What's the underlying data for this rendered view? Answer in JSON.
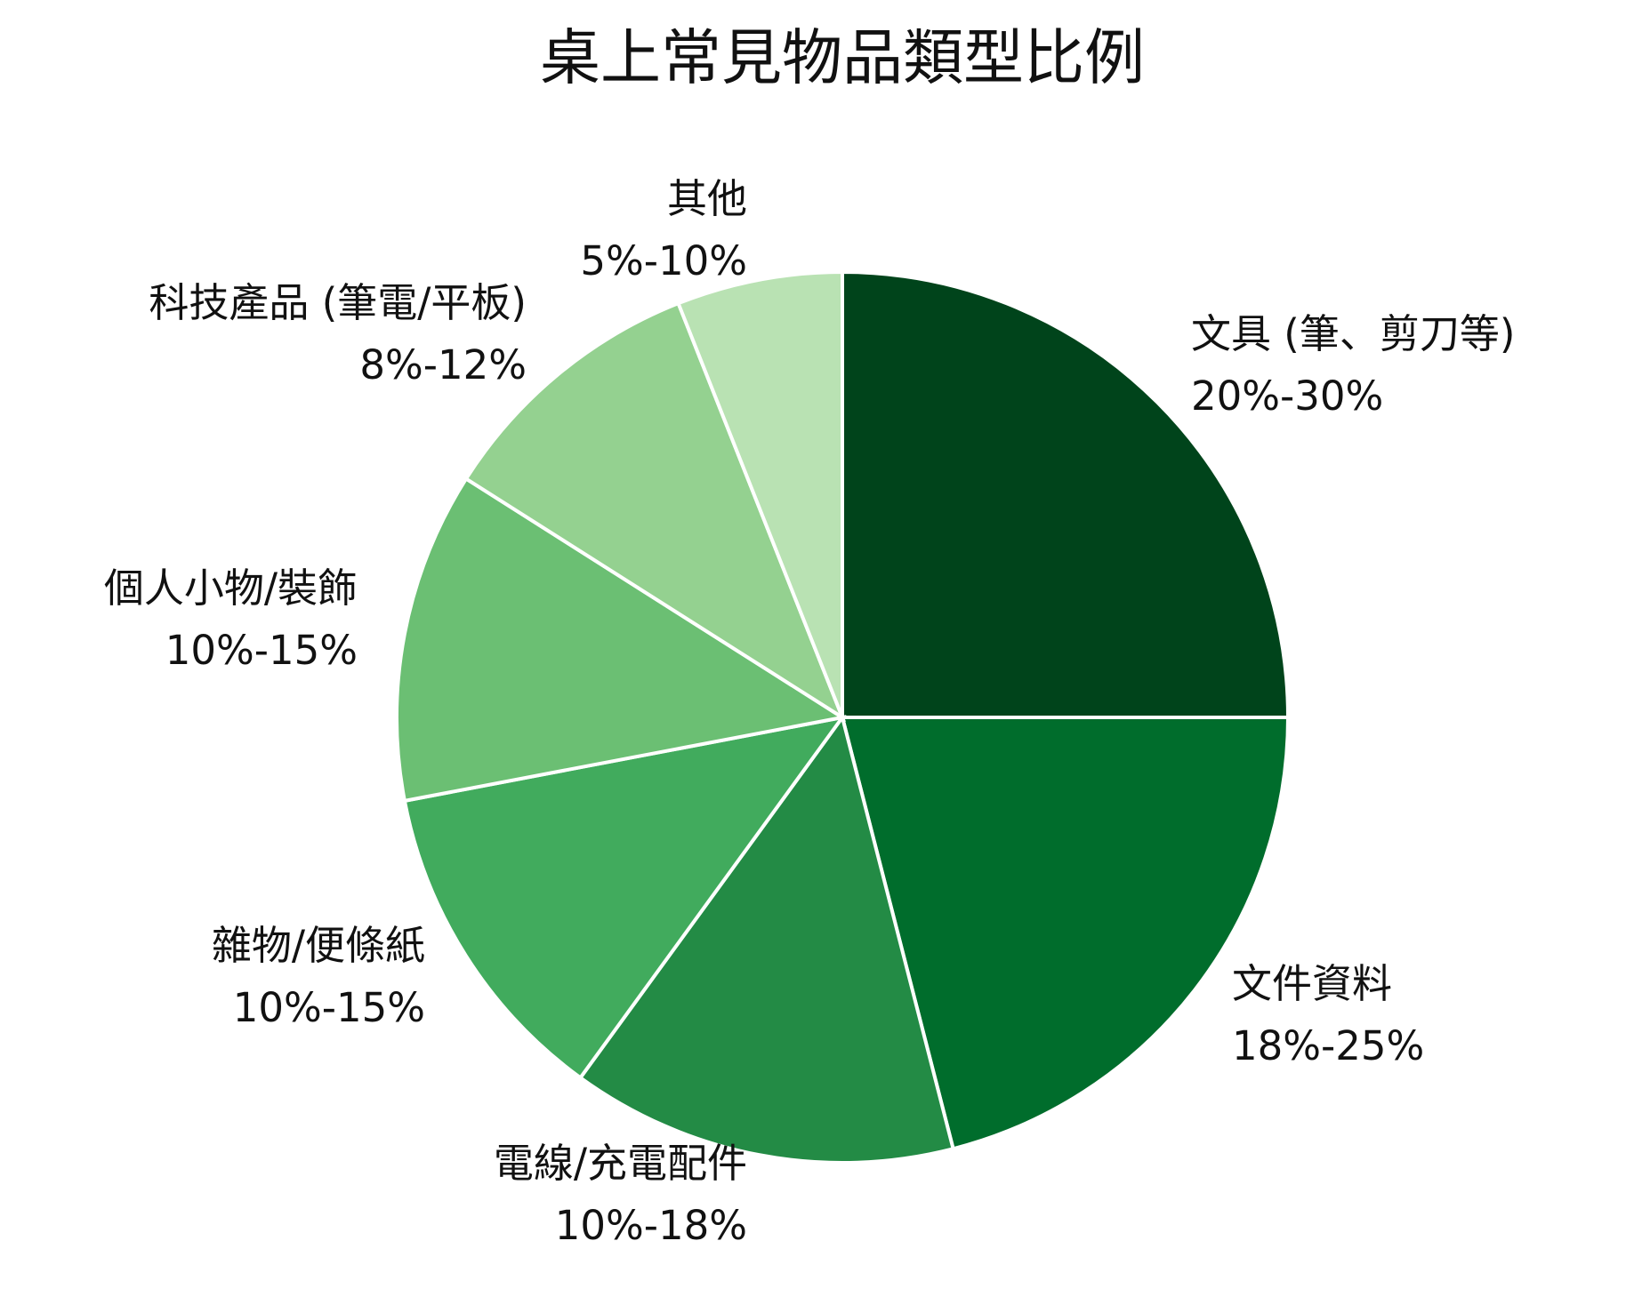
{
  "chart_data": {
    "type": "pie",
    "title": "桌上常見物品類型比例",
    "categories": [
      "文具 (筆、剪刀等)",
      "文件資料",
      "電線/充電配件",
      "雜物/便條紙",
      "個人小物/裝飾",
      "科技產品 (筆電/平板)",
      "其他"
    ],
    "ranges": [
      "20%-30%",
      "18%-25%",
      "10%-18%",
      "10%-15%",
      "10%-15%",
      "8%-12%",
      "5%-10%"
    ],
    "values": [
      25,
      21,
      14,
      12,
      12,
      10,
      6
    ],
    "colors": [
      "#00441b",
      "#006d2c",
      "#238b45",
      "#41ab5d",
      "#6bbf73",
      "#94d190",
      "#b9e2b3"
    ],
    "start_angle": 90,
    "direction": "clockwise"
  }
}
